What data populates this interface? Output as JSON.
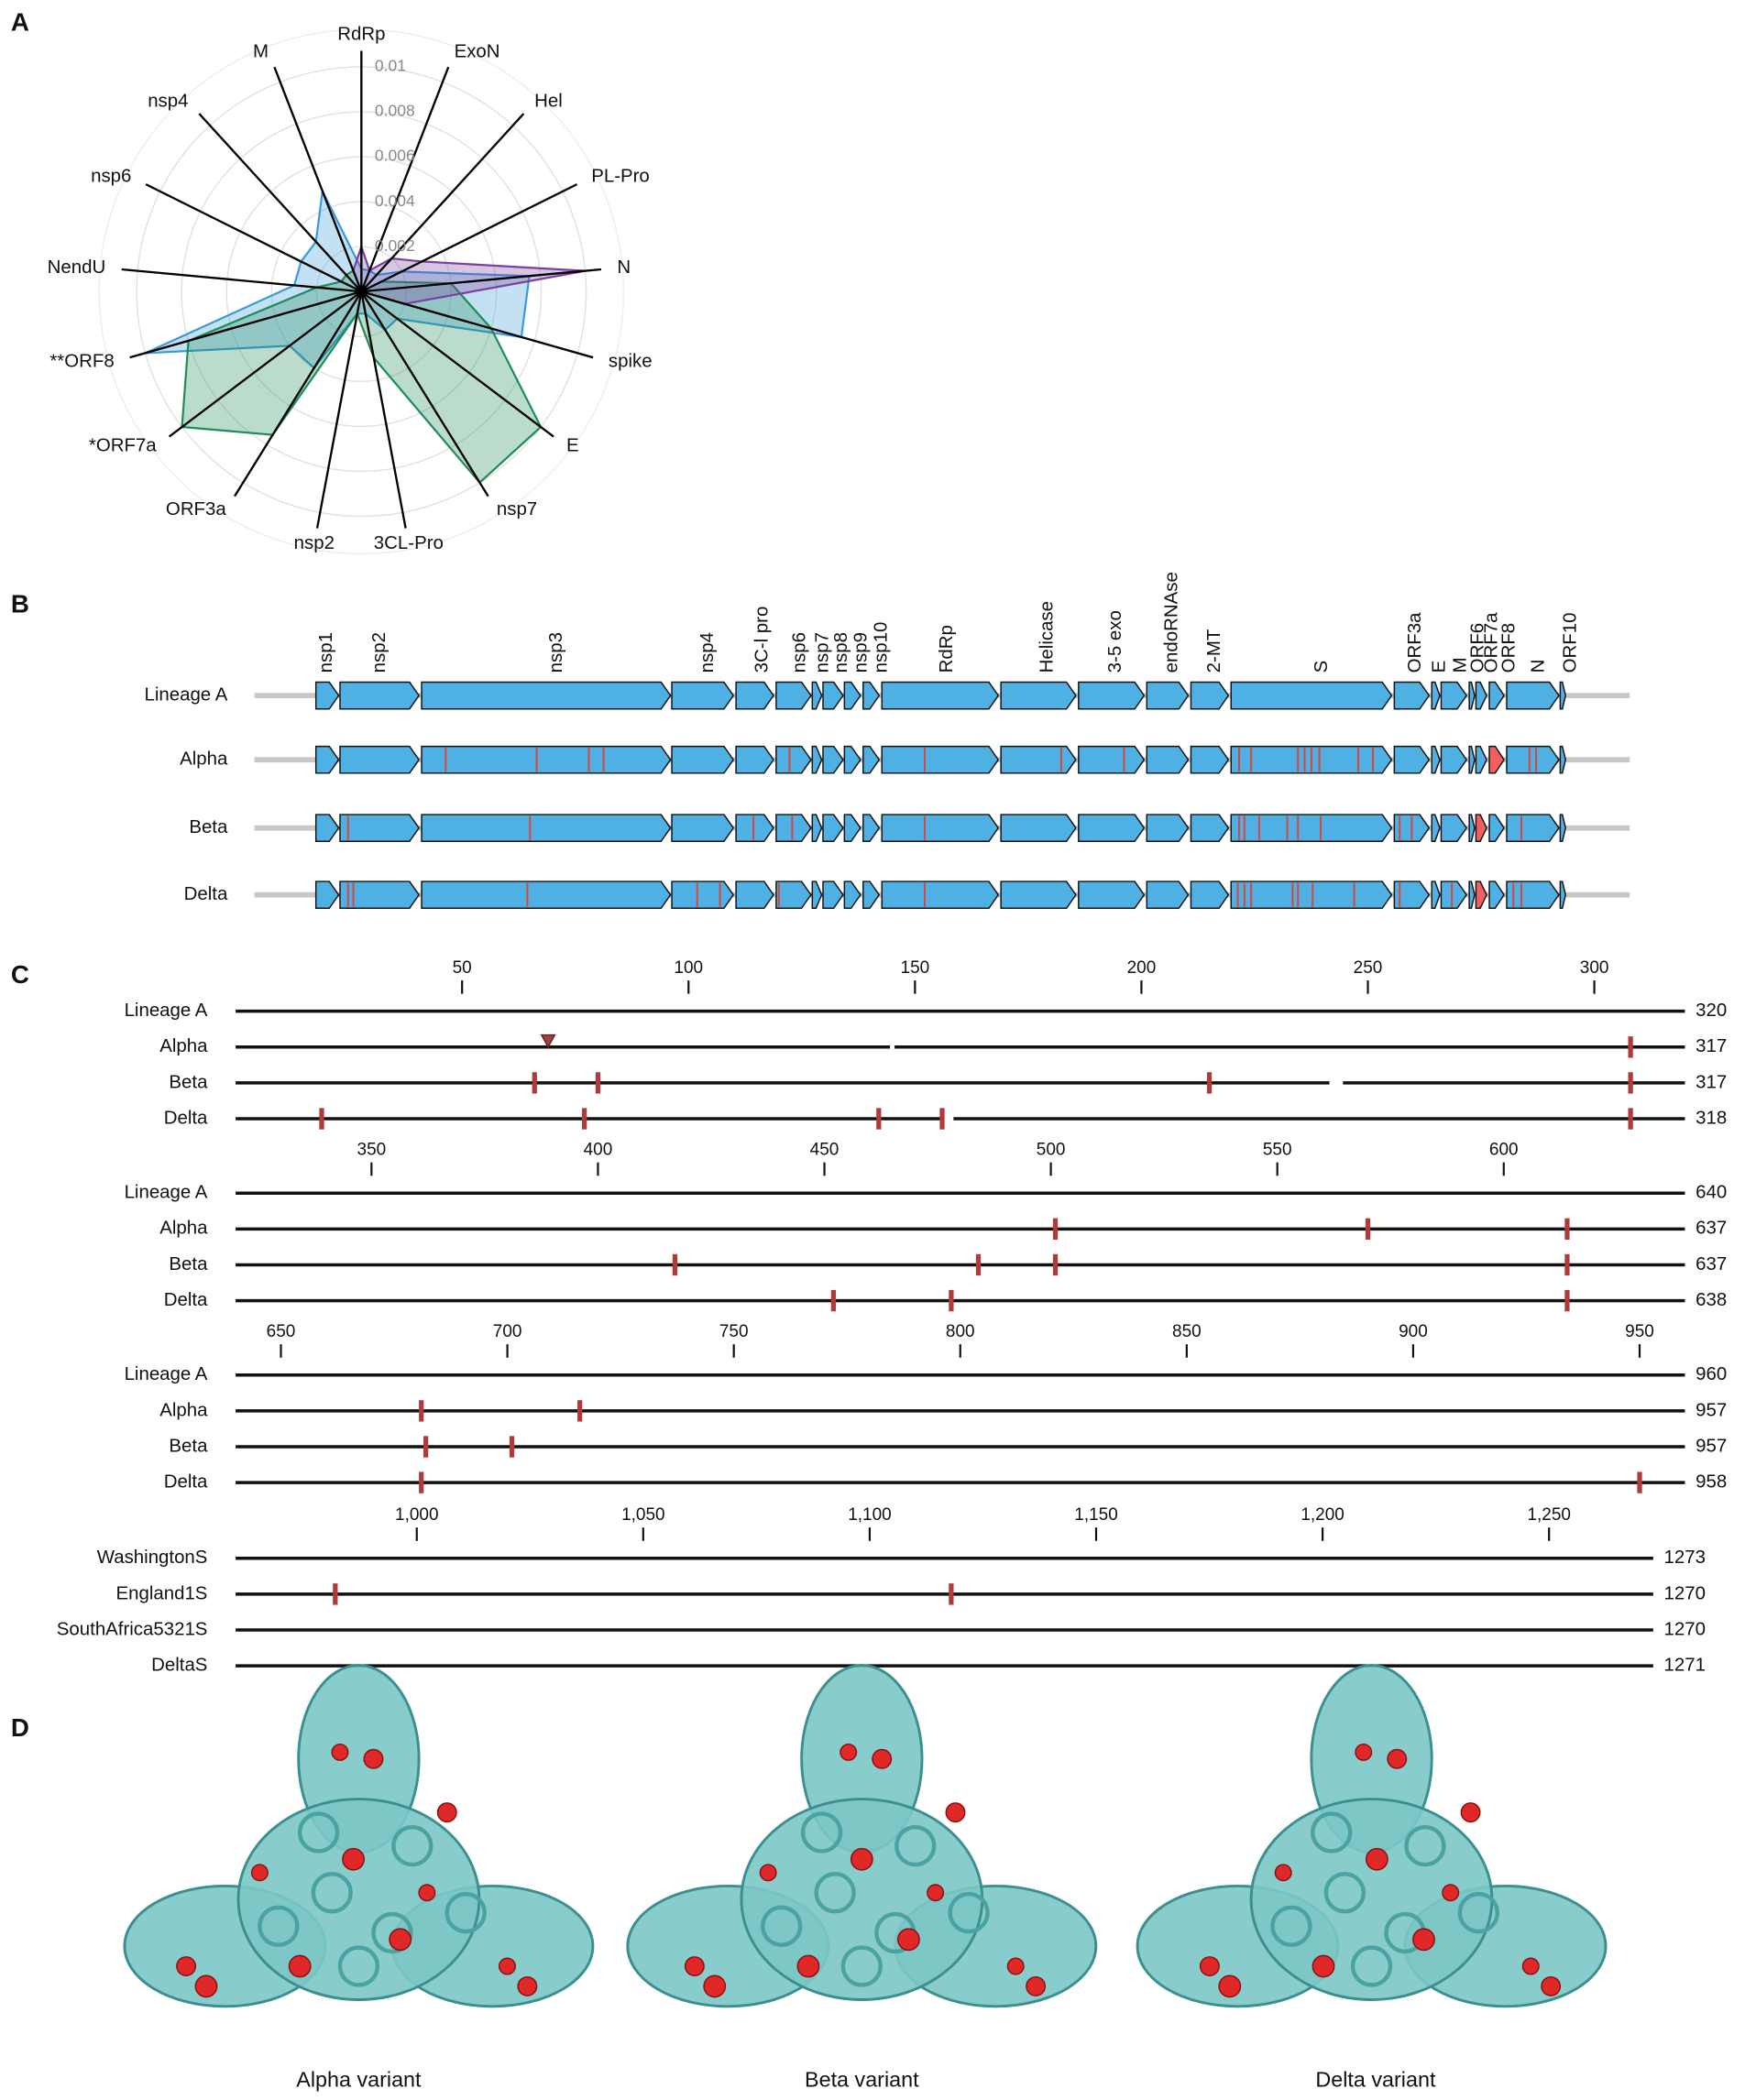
{
  "panel_labels": [
    "A",
    "B",
    "C",
    "D"
  ],
  "chart_data": {
    "type": "radar",
    "categories": [
      "RdRp",
      "ExoN",
      "Hel",
      "PL-Pro",
      "N",
      "spike",
      "E",
      "nsp7",
      "3CL-Pro",
      "nsp2",
      "ORF3a",
      "*ORF7a",
      "**ORF8",
      "NendU",
      "nsp6",
      "nsp4",
      "M"
    ],
    "ylim": [
      0,
      0.01
    ],
    "yticks": [
      0.002,
      0.004,
      0.006,
      0.008,
      0.01
    ],
    "grid": true,
    "series": [
      {
        "color": "#3a9ad9",
        "values": [
          0.001,
          0.001,
          0.001,
          0.002,
          0.0075,
          0.0074,
          0.002,
          0.002,
          0.001,
          0.001,
          0.004,
          0.004,
          0.01,
          0.003,
          0.003,
          0.003,
          0.0048
        ]
      },
      {
        "color": "#1e8c5a",
        "values": [
          0,
          0,
          0,
          0.001,
          0.004,
          0.006,
          0.01,
          0.01,
          0.003,
          0.001,
          0.0075,
          0.01,
          0.008,
          0.002,
          0.001,
          0.001,
          0.001
        ]
      },
      {
        "color": "#7b3fa0",
        "values": [
          0.002,
          0.001,
          0.002,
          0.003,
          0.01,
          0.002,
          0,
          0,
          0,
          0,
          0,
          0,
          0,
          0,
          0,
          0,
          0.001
        ]
      }
    ]
  },
  "genome_map": {
    "genes": [
      "nsp1",
      "nsp2",
      "nsp3",
      "nsp4",
      "3C-l pro",
      "nsp6",
      "nsp7",
      "nsp8",
      "nsp9",
      "nsp10",
      "RdRp",
      "Helicase",
      "3-5 exo",
      "endoRNAse",
      "2-MT",
      "S",
      "ORF3a",
      "E",
      "M",
      "ORF6",
      "ORF7a",
      "ORF8",
      "N",
      "ORF10"
    ],
    "rows": [
      "Lineage A",
      "Alpha",
      "Beta",
      "Delta"
    ]
  },
  "alignment": {
    "blocks": [
      {
        "xlim": [
          0,
          320
        ],
        "xticks": [
          50,
          100,
          150,
          200,
          250,
          300
        ],
        "rows": [
          {
            "label": "Lineage A",
            "length": 320,
            "substitutions": [],
            "deletions": [],
            "triangles": []
          },
          {
            "label": "Alpha",
            "length": 317,
            "substitutions": [
              308
            ],
            "deletions": [
              [
                145,
                145
              ]
            ],
            "triangles": [
              69
            ]
          },
          {
            "label": "Beta",
            "length": 317,
            "substitutions": [
              66,
              80,
              215,
              308
            ],
            "deletions": [
              [
                242,
                244
              ]
            ],
            "triangles": []
          },
          {
            "label": "Delta",
            "length": 318,
            "substitutions": [
              19,
              77,
              142,
              156,
              308
            ],
            "deletions": [
              [
                157,
                158
              ]
            ],
            "triangles": []
          }
        ]
      },
      {
        "xlim": [
          320,
          640
        ],
        "xticks": [
          350,
          400,
          450,
          500,
          550,
          600
        ],
        "rows": [
          {
            "label": "Lineage A",
            "length": 640,
            "substitutions": [],
            "deletions": [],
            "triangles": []
          },
          {
            "label": "Alpha",
            "length": 637,
            "substitutions": [
              501,
              570,
              614
            ],
            "deletions": [],
            "triangles": []
          },
          {
            "label": "Beta",
            "length": 637,
            "substitutions": [
              417,
              484,
              501,
              614
            ],
            "deletions": [],
            "triangles": []
          },
          {
            "label": "Delta",
            "length": 638,
            "substitutions": [
              452,
              478,
              614
            ],
            "deletions": [],
            "triangles": []
          }
        ]
      },
      {
        "xlim": [
          640,
          960
        ],
        "xticks": [
          650,
          700,
          750,
          800,
          850,
          900,
          950
        ],
        "rows": [
          {
            "label": "Lineage A",
            "length": 960,
            "substitutions": [],
            "deletions": [],
            "triangles": []
          },
          {
            "label": "Alpha",
            "length": 957,
            "substitutions": [
              681,
              716
            ],
            "deletions": [],
            "triangles": []
          },
          {
            "label": "Beta",
            "length": 957,
            "substitutions": [
              682,
              701
            ],
            "deletions": [],
            "triangles": []
          },
          {
            "label": "Delta",
            "length": 958,
            "substitutions": [
              681,
              950
            ],
            "deletions": [],
            "triangles": []
          }
        ]
      },
      {
        "xlim": [
          960,
          1273
        ],
        "xticks": [
          {
            "value": 1000,
            "label": "1,000"
          },
          {
            "value": 1050,
            "label": "1,050"
          },
          {
            "value": 1100,
            "label": "1,100"
          },
          {
            "value": 1150,
            "label": "1,150"
          },
          {
            "value": 1200,
            "label": "1,200"
          },
          {
            "value": 1250,
            "label": "1,250"
          }
        ],
        "rows": [
          {
            "label": "WashingtonS",
            "length": 1273,
            "substitutions": [],
            "deletions": [],
            "triangles": []
          },
          {
            "label": "England1S",
            "length": 1270,
            "substitutions": [
              982,
              1118
            ],
            "deletions": [],
            "triangles": []
          },
          {
            "label": "SouthAfrica5321S",
            "length": 1270,
            "substitutions": [],
            "deletions": [],
            "triangles": []
          },
          {
            "label": "DeltaS",
            "length": 1271,
            "substitutions": [],
            "deletions": [],
            "triangles": []
          }
        ]
      }
    ]
  },
  "structures": {
    "captions": [
      "Alpha variant",
      "Beta variant",
      "Delta variant"
    ]
  }
}
